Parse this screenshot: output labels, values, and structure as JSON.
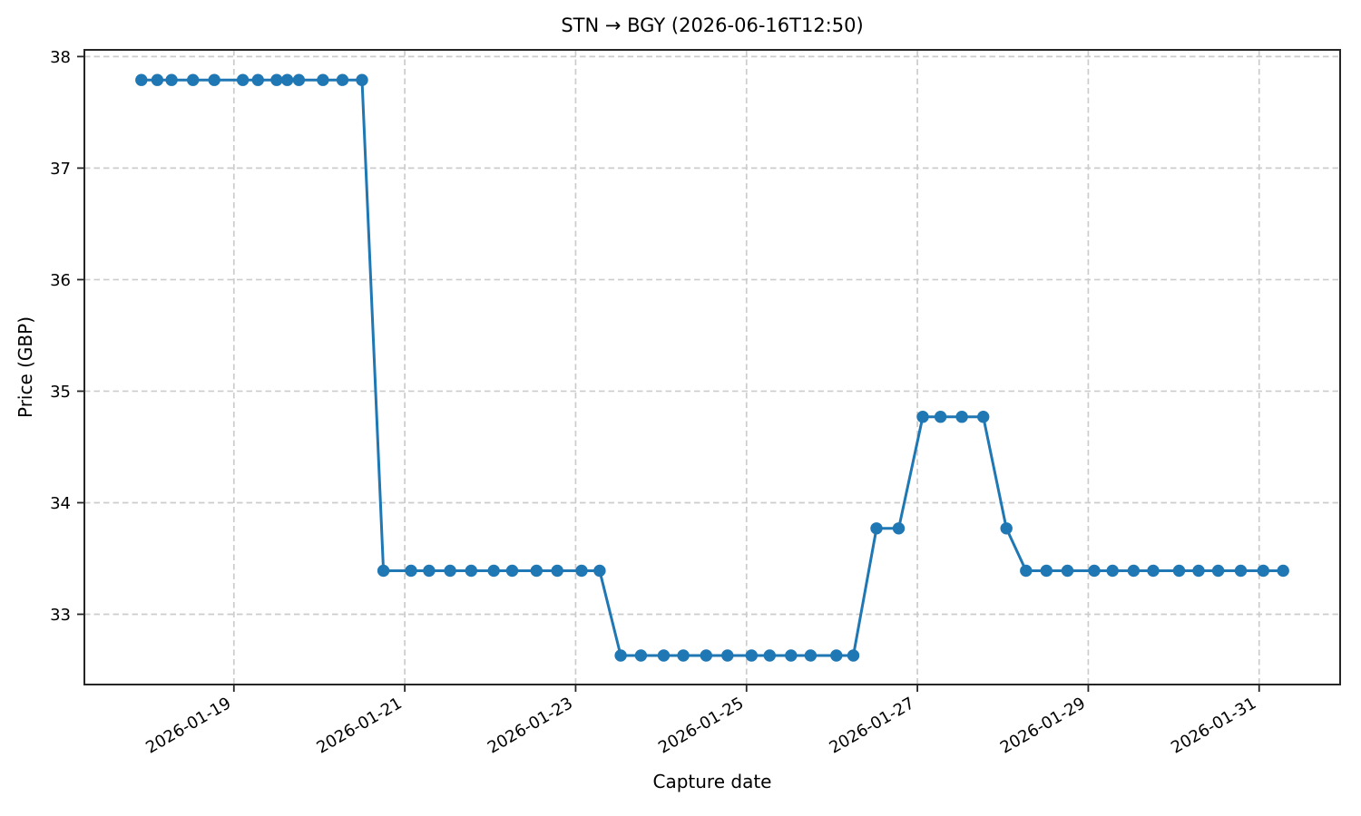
{
  "figure": {
    "title": "STN → BGY (2026-06-16T12:50)",
    "xlabel": "Capture date",
    "ylabel": "Price (GBP)"
  },
  "chart_data": {
    "type": "line",
    "title": "STN → BGY (2026-06-16T12:50)",
    "xlabel": "Capture date",
    "ylabel": "Price (GBP)",
    "grid": true,
    "legend": false,
    "line_color": "#1f77b4",
    "marker": "o",
    "background_color": "#ffffff",
    "grid_color": "#cccccc",
    "spine_color": "#262626",
    "x_ticks": [
      "2026-01-19",
      "2026-01-21",
      "2026-01-23",
      "2026-01-25",
      "2026-01-27",
      "2026-01-29",
      "2026-01-31"
    ],
    "x_tick_labels": [
      "2026-01-19",
      "2026-01-21",
      "2026-01-23",
      "2026-01-25",
      "2026-01-27",
      "2026-01-29",
      "2026-01-31"
    ],
    "y_ticks": [
      33,
      34,
      35,
      36,
      37,
      38
    ],
    "ylim": [
      32.37,
      38.06
    ],
    "xlim": [
      "2026-01-17T06:00",
      "2026-01-31T22:45"
    ],
    "series": [
      {
        "name": "price",
        "points": [
          [
            "2026-01-17T22:00",
            37.79
          ],
          [
            "2026-01-18T02:30",
            37.79
          ],
          [
            "2026-01-18T06:30",
            37.79
          ],
          [
            "2026-01-18T12:30",
            37.79
          ],
          [
            "2026-01-18T18:30",
            37.79
          ],
          [
            "2026-01-19T02:30",
            37.79
          ],
          [
            "2026-01-19T06:45",
            37.79
          ],
          [
            "2026-01-19T12:00",
            37.79
          ],
          [
            "2026-01-19T15:00",
            37.79
          ],
          [
            "2026-01-19T18:15",
            37.79
          ],
          [
            "2026-01-20T01:00",
            37.79
          ],
          [
            "2026-01-20T06:30",
            37.79
          ],
          [
            "2026-01-20T12:00",
            37.79
          ],
          [
            "2026-01-20T18:00",
            33.39
          ],
          [
            "2026-01-21T01:45",
            33.39
          ],
          [
            "2026-01-21T06:50",
            33.39
          ],
          [
            "2026-01-21T12:45",
            33.39
          ],
          [
            "2026-01-21T18:40",
            33.39
          ],
          [
            "2026-01-22T01:00",
            33.39
          ],
          [
            "2026-01-22T06:10",
            33.39
          ],
          [
            "2026-01-22T13:00",
            33.39
          ],
          [
            "2026-01-22T18:50",
            33.39
          ],
          [
            "2026-01-23T01:40",
            33.39
          ],
          [
            "2026-01-23T06:45",
            33.39
          ],
          [
            "2026-01-23T12:40",
            32.63
          ],
          [
            "2026-01-23T18:20",
            32.63
          ],
          [
            "2026-01-24T00:45",
            32.63
          ],
          [
            "2026-01-24T06:15",
            32.63
          ],
          [
            "2026-01-24T12:40",
            32.63
          ],
          [
            "2026-01-24T18:40",
            32.63
          ],
          [
            "2026-01-25T01:25",
            32.63
          ],
          [
            "2026-01-25T06:30",
            32.63
          ],
          [
            "2026-01-25T12:30",
            32.63
          ],
          [
            "2026-01-25T18:00",
            32.63
          ],
          [
            "2026-01-26T01:15",
            32.63
          ],
          [
            "2026-01-26T06:00",
            32.63
          ],
          [
            "2026-01-26T12:30",
            33.77
          ],
          [
            "2026-01-26T18:45",
            33.77
          ],
          [
            "2026-01-27T01:30",
            34.77
          ],
          [
            "2026-01-27T06:30",
            34.77
          ],
          [
            "2026-01-27T12:30",
            34.77
          ],
          [
            "2026-01-27T18:30",
            34.77
          ],
          [
            "2026-01-28T01:00",
            33.77
          ],
          [
            "2026-01-28T06:30",
            33.39
          ],
          [
            "2026-01-28T12:15",
            33.39
          ],
          [
            "2026-01-28T18:10",
            33.39
          ],
          [
            "2026-01-29T01:40",
            33.39
          ],
          [
            "2026-01-29T06:50",
            33.39
          ],
          [
            "2026-01-29T12:45",
            33.39
          ],
          [
            "2026-01-29T18:15",
            33.39
          ],
          [
            "2026-01-30T01:30",
            33.39
          ],
          [
            "2026-01-30T07:00",
            33.39
          ],
          [
            "2026-01-30T12:30",
            33.39
          ],
          [
            "2026-01-30T18:50",
            33.39
          ],
          [
            "2026-01-31T01:10",
            33.39
          ],
          [
            "2026-01-31T06:45",
            33.39
          ]
        ]
      }
    ]
  }
}
